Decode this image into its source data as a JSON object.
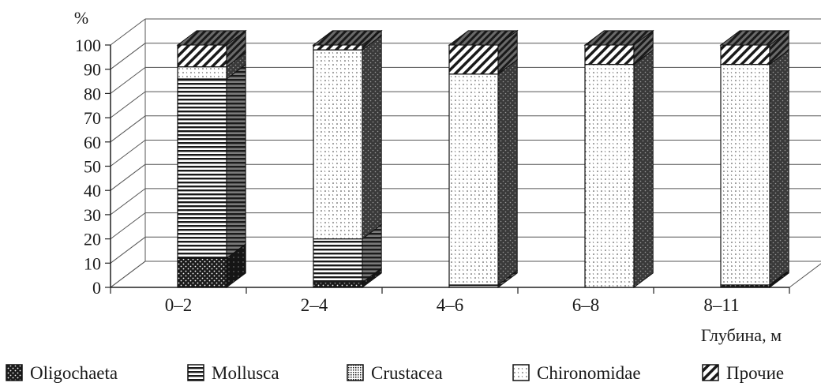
{
  "chart_data": {
    "type": "bar",
    "stacked": true,
    "three_d": true,
    "y_unit": "%",
    "xlabel": "Глубина, м",
    "ylim": [
      0,
      100
    ],
    "yticks": [
      0,
      10,
      20,
      30,
      40,
      50,
      60,
      70,
      80,
      90,
      100
    ],
    "grid": true,
    "legend_position": "bottom",
    "categories": [
      "0–2",
      "2–4",
      "4–6",
      "6–8",
      "8–11"
    ],
    "series": [
      {
        "name": "Oligochaeta",
        "pattern": "dots-dark",
        "values": [
          12,
          2,
          0,
          0,
          1
        ]
      },
      {
        "name": "Mollusca",
        "pattern": "horizontal-lines",
        "values": [
          74,
          18,
          1,
          0,
          0
        ]
      },
      {
        "name": "Crustacea",
        "pattern": "fine-grid",
        "values": [
          0,
          0,
          0,
          0,
          0
        ]
      },
      {
        "name": "Chironomidae",
        "pattern": "sparse-dots-light",
        "values": [
          5,
          78,
          87,
          92,
          91
        ]
      },
      {
        "name": "Прочие",
        "pattern": "diagonal-hatch",
        "values": [
          9,
          2,
          12,
          8,
          8
        ]
      }
    ]
  }
}
